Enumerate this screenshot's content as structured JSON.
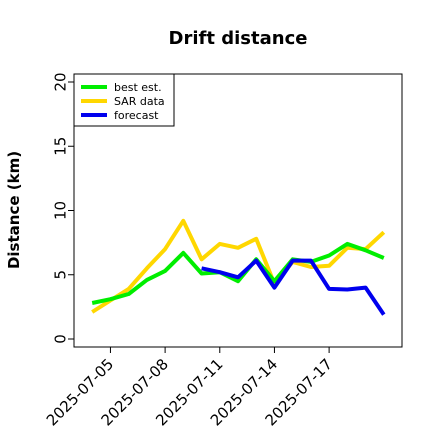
{
  "chart_data": {
    "type": "line",
    "title": "Drift distance",
    "xlabel": "",
    "ylabel": "Distance (km)",
    "ylim": [
      0,
      20
    ],
    "yticks": [
      0,
      5,
      10,
      15,
      20
    ],
    "x": [
      "2025-07-04",
      "2025-07-05",
      "2025-07-06",
      "2025-07-07",
      "2025-07-08",
      "2025-07-09",
      "2025-07-10",
      "2025-07-11",
      "2025-07-12",
      "2025-07-13",
      "2025-07-14",
      "2025-07-15",
      "2025-07-16",
      "2025-07-17",
      "2025-07-18",
      "2025-07-19",
      "2025-07-20"
    ],
    "xlim": [
      "2025-07-03",
      "2025-07-21"
    ],
    "xticks": [
      "2025-07-05",
      "2025-07-08",
      "2025-07-11",
      "2025-07-14",
      "2025-07-17"
    ],
    "series": [
      {
        "name": "best est.",
        "color": "#00ee00",
        "x": [
          "2025-07-04",
          "2025-07-05",
          "2025-07-06",
          "2025-07-07",
          "2025-07-08",
          "2025-07-09",
          "2025-07-10",
          "2025-07-11",
          "2025-07-12",
          "2025-07-13",
          "2025-07-14",
          "2025-07-15",
          "2025-07-16",
          "2025-07-17",
          "2025-07-18",
          "2025-07-19",
          "2025-07-20"
        ],
        "values": [
          2.8,
          3.1,
          3.5,
          4.6,
          5.3,
          6.7,
          5.1,
          5.2,
          4.5,
          6.2,
          4.5,
          6.2,
          6.0,
          6.5,
          7.4,
          6.9,
          6.3
        ]
      },
      {
        "name": "SAR data",
        "color": "#ffd700",
        "x": [
          "2025-07-04",
          "2025-07-05",
          "2025-07-06",
          "2025-07-07",
          "2025-07-08",
          "2025-07-09",
          "2025-07-10",
          "2025-07-11",
          "2025-07-12",
          "2025-07-13",
          "2025-07-14",
          "2025-07-15",
          "2025-07-16",
          "2025-07-17",
          "2025-07-18",
          "2025-07-19",
          "2025-07-20"
        ],
        "values": [
          2.1,
          3.0,
          3.9,
          5.5,
          7.0,
          9.2,
          6.2,
          7.4,
          7.1,
          7.8,
          4.3,
          6.0,
          5.6,
          5.7,
          7.1,
          7.0,
          8.3
        ]
      },
      {
        "name": "forecast",
        "color": "#0000ee",
        "x": [
          "2025-07-10",
          "2025-07-11",
          "2025-07-12",
          "2025-07-13",
          "2025-07-14",
          "2025-07-15",
          "2025-07-16",
          "2025-07-17",
          "2025-07-18",
          "2025-07-19",
          "2025-07-20"
        ],
        "values": [
          5.5,
          5.2,
          4.8,
          6.1,
          4.0,
          6.1,
          6.1,
          3.9,
          3.85,
          4.0,
          1.9
        ]
      }
    ],
    "grid": false,
    "legend": "top-left"
  }
}
